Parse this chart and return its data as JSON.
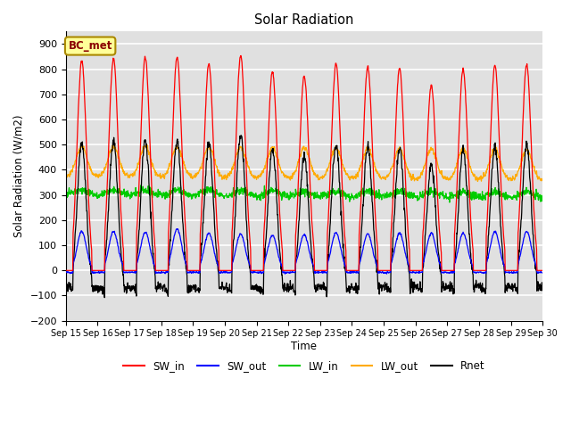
{
  "title": "Solar Radiation",
  "ylabel": "Solar Radiation (W/m2)",
  "xlabel": "Time",
  "ylim": [
    -200,
    950
  ],
  "yticks": [
    -200,
    -100,
    0,
    100,
    200,
    300,
    400,
    500,
    600,
    700,
    800,
    900
  ],
  "x_tick_labels": [
    "Sep 15",
    "Sep 16",
    "Sep 17",
    "Sep 18",
    "Sep 19",
    "Sep 20",
    "Sep 21",
    "Sep 22",
    "Sep 23",
    "Sep 24",
    "Sep 25",
    "Sep 26",
    "Sep 27",
    "Sep 28",
    "Sep 29",
    "Sep 30"
  ],
  "colors": {
    "SW_in": "#ff0000",
    "SW_out": "#0000ff",
    "LW_in": "#00cc00",
    "LW_out": "#ffaa00",
    "Rnet": "#000000"
  },
  "legend_label": "BC_met",
  "legend_box_color": "#ffff99",
  "legend_box_edge": "#aa8800",
  "background_color": "#e0e0e0",
  "grid_color": "#ffffff",
  "n_days": 15,
  "dt": 0.25
}
